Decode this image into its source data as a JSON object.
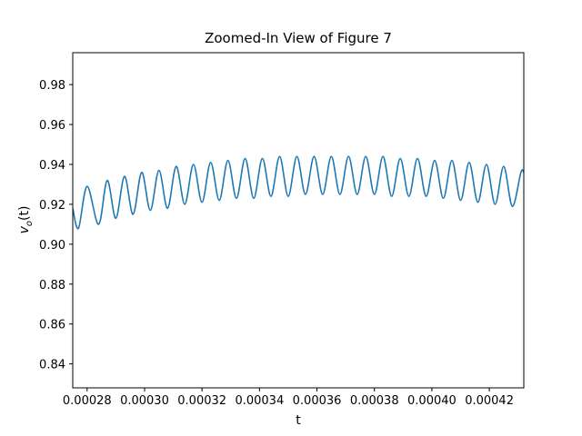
{
  "chart_data": {
    "type": "line",
    "title": "Zoomed-In View of Figure 7",
    "xlabel": "t",
    "ylabel": "v_o(t)",
    "xlim": [
      0.000275,
      0.000432
    ],
    "ylim": [
      0.828,
      0.996
    ],
    "xticks": [
      0.00028,
      0.0003,
      0.00032,
      0.00034,
      0.00036,
      0.00038,
      0.0004,
      0.00042
    ],
    "xtick_labels": [
      "0.00028",
      "0.00030",
      "0.00032",
      "0.00034",
      "0.00036",
      "0.00038",
      "0.00040",
      "0.00042"
    ],
    "yticks": [
      0.84,
      0.86,
      0.88,
      0.9,
      0.92,
      0.94,
      0.96,
      0.98
    ],
    "ytick_labels": [
      "0.84",
      "0.86",
      "0.88",
      "0.90",
      "0.92",
      "0.94",
      "0.96",
      "0.98"
    ],
    "grid": false,
    "series": [
      {
        "color": "#1f77b4",
        "x": [
          0.000275,
          0.000277,
          0.00028,
          0.000284,
          0.000287,
          0.00029,
          0.000293,
          0.000296,
          0.000299,
          0.000302,
          0.000305,
          0.000308,
          0.000311,
          0.000314,
          0.000317,
          0.00032,
          0.000323,
          0.000326,
          0.000329,
          0.000332,
          0.000335,
          0.000338,
          0.000341,
          0.000344,
          0.000347,
          0.00035,
          0.000353,
          0.000356,
          0.000359,
          0.000362,
          0.000365,
          0.000368,
          0.000371,
          0.000374,
          0.000377,
          0.00038,
          0.000383,
          0.000386,
          0.000389,
          0.000392,
          0.000395,
          0.000398,
          0.000401,
          0.000404,
          0.000407,
          0.00041,
          0.000413,
          0.000416,
          0.000419,
          0.000422,
          0.000425,
          0.000428,
          0.000431,
          0.000432
        ],
        "y": [
          0.918,
          0.908,
          0.929,
          0.91,
          0.932,
          0.913,
          0.934,
          0.915,
          0.936,
          0.917,
          0.937,
          0.918,
          0.939,
          0.92,
          0.94,
          0.921,
          0.941,
          0.922,
          0.942,
          0.923,
          0.943,
          0.923,
          0.943,
          0.924,
          0.944,
          0.924,
          0.944,
          0.925,
          0.944,
          0.925,
          0.944,
          0.925,
          0.944,
          0.925,
          0.944,
          0.925,
          0.944,
          0.924,
          0.943,
          0.924,
          0.943,
          0.924,
          0.942,
          0.923,
          0.942,
          0.922,
          0.941,
          0.921,
          0.94,
          0.92,
          0.939,
          0.919,
          0.936,
          0.936
        ]
      }
    ]
  }
}
